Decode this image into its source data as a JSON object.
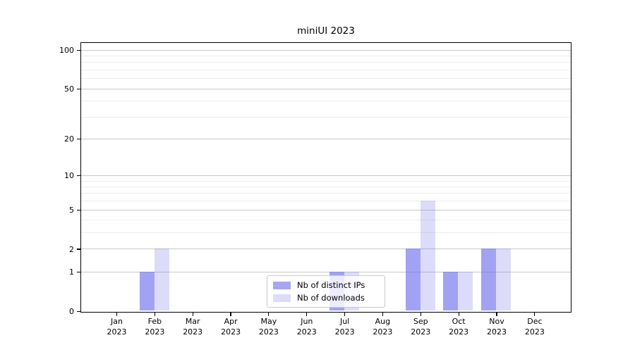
{
  "title": "miniUI 2023",
  "legend": {
    "items": [
      {
        "label": "Nb of distinct IPs",
        "color": "#a6a6f2",
        "bar_fill": "rgba(108,108,236,0.63)"
      },
      {
        "label": "Nb of downloads",
        "color": "#dcdcf8",
        "bar_fill": "rgba(108,108,236,0.24)"
      }
    ]
  },
  "chart_data": {
    "type": "bar",
    "title": "miniUI 2023",
    "categories": [
      "Jan 2023",
      "Feb 2023",
      "Mar 2023",
      "Apr 2023",
      "May 2023",
      "Jun 2023",
      "Jul 2023",
      "Aug 2023",
      "Sep 2023",
      "Oct 2023",
      "Nov 2023",
      "Dec 2023"
    ],
    "x_tick_line1": [
      "Jan",
      "Feb",
      "Mar",
      "Apr",
      "May",
      "Jun",
      "Jul",
      "Aug",
      "Sep",
      "Oct",
      "Nov",
      "Dec"
    ],
    "x_tick_line2": [
      "2023",
      "2023",
      "2023",
      "2023",
      "2023",
      "2023",
      "2023",
      "2023",
      "2023",
      "2023",
      "2023",
      "2023"
    ],
    "series": [
      {
        "name": "Nb of distinct IPs",
        "color": "#a6a6f2",
        "bar_fill": "rgba(108,108,236,0.63)",
        "values": [
          0,
          1,
          0,
          0,
          0,
          0,
          1,
          0,
          2,
          1,
          2,
          0
        ]
      },
      {
        "name": "Nb of downloads",
        "color": "#dcdcf8",
        "bar_fill": "rgba(108,108,236,0.24)",
        "values": [
          0,
          2,
          0,
          0,
          0,
          0,
          1,
          0,
          6,
          1,
          2,
          0
        ]
      }
    ],
    "xlabel": "",
    "ylabel": "",
    "y_ticks": [
      0,
      1,
      2,
      5,
      10,
      20,
      50,
      100
    ],
    "y_minor_gridlines": [
      3,
      4,
      6,
      7,
      8,
      9,
      30,
      40,
      60,
      70,
      80,
      90
    ],
    "y_scale": "log10(1+v)",
    "ylim": [
      0,
      113
    ],
    "grid": "horizontal major + minor",
    "legend_position": "inside bottom-center"
  }
}
